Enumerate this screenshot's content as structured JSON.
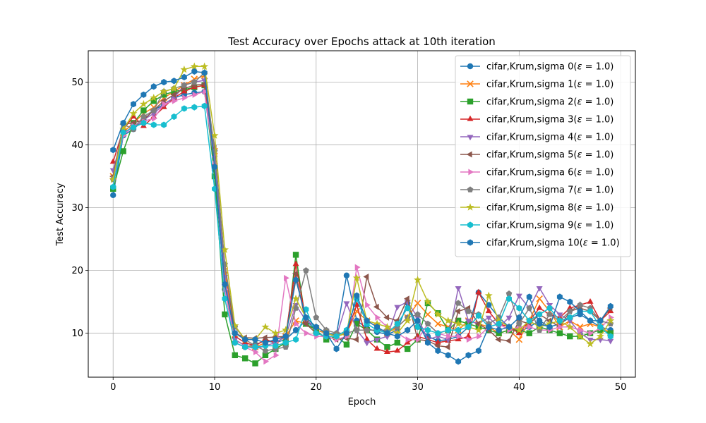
{
  "chart_data": {
    "type": "line",
    "title": "Test Accuracy over Epochs attack at 10th iteration",
    "xlabel": "Epoch",
    "ylabel": "Test Accuracy",
    "xlim": [
      -2.45,
      51.45
    ],
    "ylim": [
      3.0,
      55.0
    ],
    "xticks": [
      0,
      10,
      20,
      30,
      40,
      50
    ],
    "yticks": [
      10,
      20,
      30,
      40,
      50
    ],
    "grid": true,
    "legend_position": "top-right",
    "x": [
      0,
      1,
      2,
      3,
      4,
      5,
      6,
      7,
      8,
      9,
      10,
      11,
      12,
      13,
      14,
      15,
      16,
      17,
      18,
      19,
      20,
      21,
      22,
      23,
      24,
      25,
      26,
      27,
      28,
      29,
      30,
      31,
      32,
      33,
      34,
      35,
      36,
      37,
      38,
      39,
      40,
      41,
      42,
      43,
      44,
      45,
      46,
      47,
      48,
      49
    ],
    "series": [
      {
        "name": "cifar,Krum,sigma 0($\\epsilon = 1.0$)",
        "color": "#1f77b4",
        "marker": "circle",
        "values": [
          32,
          41.5,
          42.5,
          44,
          45.5,
          46.5,
          47.5,
          48,
          48.3,
          48.5,
          36,
          17,
          8.5,
          7.8,
          8.2,
          8.8,
          8.5,
          9,
          10.5,
          12,
          10.5,
          10,
          9.8,
          19.2,
          12,
          10.8,
          10.2,
          9.8,
          10.5,
          14.8,
          11,
          9.5,
          8.8,
          9,
          9.5,
          11,
          16.5,
          14.5,
          12.5,
          11,
          10.2,
          11,
          12,
          11,
          11.5,
          12.5,
          13,
          12,
          11,
          10.5
        ]
      },
      {
        "name": "cifar,Krum,sigma 1($\\epsilon = 1.0$)",
        "color": "#ff7f0e",
        "marker": "x",
        "values": [
          35,
          42,
          43.5,
          45,
          46,
          47.5,
          48.5,
          49.5,
          50.5,
          51,
          39,
          20,
          9,
          8,
          7.8,
          8.5,
          9,
          9.5,
          12,
          11.5,
          10.5,
          10,
          9.5,
          10,
          13.5,
          12,
          11,
          10,
          11,
          12.5,
          14.8,
          13,
          11.5,
          11,
          10.5,
          12,
          11.5,
          11,
          10,
          10.5,
          9,
          12,
          15.5,
          13.5,
          11,
          12,
          11,
          11.5,
          11,
          10
        ]
      },
      {
        "name": "cifar,Krum,sigma 2($\\epsilon = 1.0$)",
        "color": "#2ca02c",
        "marker": "square",
        "values": [
          33,
          39,
          43.5,
          45.5,
          47,
          48,
          48.5,
          48.8,
          49.2,
          49.5,
          35,
          13,
          6.5,
          6,
          5.2,
          6.5,
          7.5,
          8.5,
          22.5,
          11.5,
          10.5,
          9,
          9.5,
          8.2,
          11.5,
          10.5,
          9,
          7.8,
          8.5,
          7.5,
          9,
          14.8,
          13.2,
          10.5,
          12,
          11.5,
          11,
          10.5,
          10,
          10.5,
          10.5,
          10,
          11,
          10.5,
          10,
          9.5,
          9.5,
          10,
          10.5,
          10
        ]
      },
      {
        "name": "cifar,Krum,sigma 3($\\epsilon = 1.0$)",
        "color": "#d62728",
        "marker": "triangle-up",
        "values": [
          37.3,
          42.5,
          44.5,
          43,
          44.5,
          46,
          47.5,
          48.5,
          49.2,
          49.5,
          37,
          18,
          9.5,
          8.5,
          8,
          9,
          8.5,
          9.5,
          21,
          12,
          11,
          10,
          9.5,
          10,
          14.5,
          9,
          7.5,
          7,
          7.2,
          8.5,
          9.5,
          9,
          8.5,
          8.8,
          9,
          9.5,
          16.5,
          13.5,
          11.5,
          11,
          10,
          12,
          14,
          13,
          12.5,
          14,
          14.5,
          15,
          12,
          13.5
        ]
      },
      {
        "name": "cifar,Krum,sigma 4($\\epsilon = 1.0$)",
        "color": "#9467bd",
        "marker": "triangle-down",
        "values": [
          36,
          41.8,
          43,
          44,
          45,
          46.5,
          47.5,
          49.5,
          50,
          50.3,
          38,
          19,
          9,
          8,
          7.5,
          8,
          8.5,
          9.5,
          14.5,
          12,
          11,
          10,
          9.5,
          14.8,
          10.5,
          8.5,
          9,
          9.5,
          14.2,
          15,
          12.5,
          9,
          9.5,
          9,
          17.2,
          12,
          11.5,
          12.5,
          11,
          12.5,
          16,
          14,
          17.2,
          14.5,
          13,
          12,
          10,
          9,
          9,
          8.8
        ]
      },
      {
        "name": "cifar,Krum,sigma 5($\\epsilon = 1.0$)",
        "color": "#8c564b",
        "marker": "triangle-left",
        "values": [
          35,
          43.3,
          43.5,
          44,
          45.5,
          47,
          48,
          49,
          49.5,
          49.7,
          39.5,
          21,
          10,
          9.3,
          9.2,
          9.3,
          9.4,
          9.5,
          19.5,
          11.5,
          10,
          9.5,
          9,
          9.2,
          9,
          19,
          14.2,
          12.5,
          12,
          15.5,
          9,
          8.8,
          8,
          7.8,
          13.5,
          14,
          11.5,
          10.5,
          9,
          8.8,
          12,
          11.5,
          13,
          12,
          11,
          13.5,
          14,
          13.5,
          12,
          14
        ]
      },
      {
        "name": "cifar,Krum,sigma 6($\\epsilon = 1.0$)",
        "color": "#e377c2",
        "marker": "triangle-right",
        "values": [
          34.5,
          41.5,
          43,
          43.8,
          44.2,
          46.5,
          47,
          47.5,
          48,
          48.5,
          37,
          17,
          8.5,
          7.8,
          7,
          5.5,
          6.5,
          18.8,
          11.5,
          10,
          9.5,
          9.5,
          9,
          9.5,
          20.5,
          14.5,
          12.5,
          11,
          10,
          9,
          9,
          11.5,
          10,
          9.5,
          9.5,
          9,
          9.5,
          11,
          11.5,
          10.5,
          11,
          11,
          10.5,
          10.5,
          11,
          11,
          10.5,
          10,
          10.8,
          12.5
        ]
      },
      {
        "name": "cifar,Krum,sigma 7($\\epsilon = 1.0$)",
        "color": "#7f7f7f",
        "marker": "pentagon",
        "values": [
          34.5,
          43.3,
          42.5,
          44.5,
          45.5,
          48.5,
          49,
          49.5,
          50,
          51.5,
          39,
          21,
          11,
          9,
          8,
          7.2,
          7.5,
          7.8,
          14,
          20,
          12.5,
          10.5,
          10,
          10,
          10.5,
          10.5,
          10.5,
          10.5,
          11,
          12.5,
          13,
          11.5,
          10,
          10.5,
          14.8,
          13.5,
          13,
          11.5,
          12.5,
          16.3,
          11.5,
          14,
          10.5,
          13,
          12,
          13.5,
          14.5,
          14,
          12,
          11.5
        ]
      },
      {
        "name": "cifar,Krum,sigma 8($\\epsilon = 1.0$)",
        "color": "#bcbd22",
        "marker": "star",
        "values": [
          34.5,
          42.5,
          45,
          46.5,
          47.5,
          48.5,
          49,
          52,
          52.5,
          52.5,
          41.5,
          23.3,
          11.2,
          9,
          9,
          11,
          10,
          10.5,
          15.5,
          12.5,
          11,
          10,
          9.5,
          10,
          18.8,
          12,
          11.5,
          11,
          10,
          12,
          18.5,
          15,
          13,
          12,
          11.5,
          11,
          10.5,
          16,
          12,
          11,
          10.5,
          12,
          11,
          11.5,
          12,
          11,
          9.5,
          8.3,
          9.5,
          12
        ]
      },
      {
        "name": "cifar,Krum,sigma 9($\\epsilon = 1.0$)",
        "color": "#17becf",
        "marker": "hexagon",
        "values": [
          33.3,
          42,
          42.8,
          43.5,
          43.2,
          43.2,
          44.5,
          45.8,
          46,
          46.2,
          33,
          15.5,
          8.5,
          7.8,
          7.8,
          8,
          8,
          8.5,
          9,
          13.8,
          10,
          9.5,
          9.5,
          10.5,
          15.5,
          11.5,
          10.5,
          10,
          11.5,
          14,
          11,
          10.5,
          10,
          10.5,
          10.5,
          11,
          12.8,
          11,
          11.5,
          15.5,
          14,
          12,
          13,
          14,
          12,
          12.5,
          13.5,
          13.5,
          11,
          9.5
        ]
      },
      {
        "name": "cifar,Krum,sigma 10($\\epsilon = 1.0$)",
        "color": "#1f77b4",
        "marker": "hexagon",
        "values": [
          39.2,
          43.5,
          46.5,
          48,
          49.3,
          50,
          50.2,
          50.8,
          51.7,
          51.5,
          36.5,
          17.8,
          10,
          9,
          9,
          8.5,
          9,
          9.5,
          18.5,
          12.5,
          11,
          10,
          7.5,
          10,
          16,
          12,
          11,
          10,
          9.5,
          10.5,
          12,
          8.5,
          7.2,
          6.5,
          5.5,
          6.5,
          7.2,
          11,
          10.5,
          11,
          12.5,
          15.8,
          11.5,
          11,
          15.8,
          15,
          13.5,
          12,
          12,
          14.3
        ]
      }
    ]
  }
}
